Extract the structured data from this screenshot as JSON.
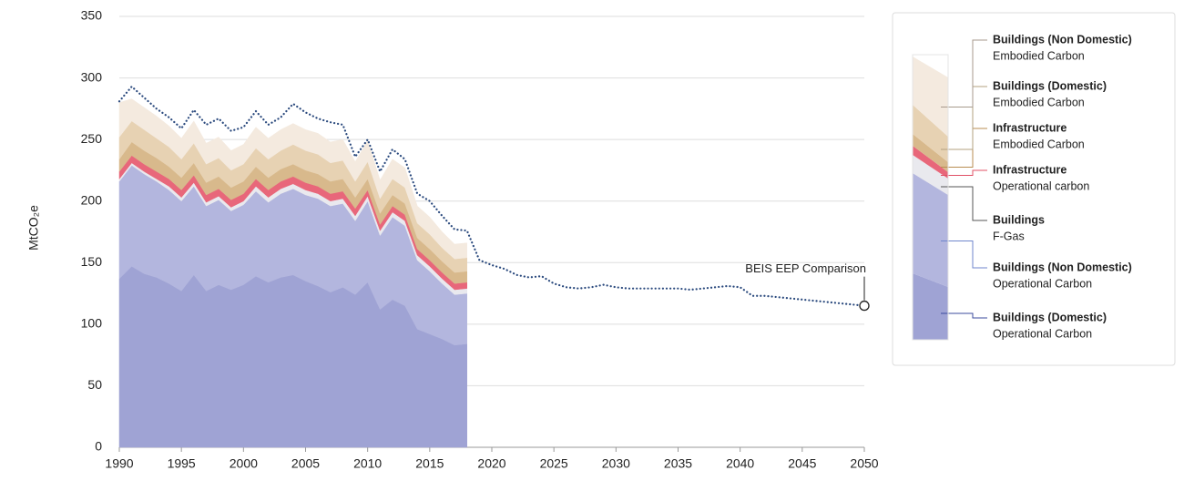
{
  "chart_data": {
    "type": "area",
    "y_label": "MtCO₂e",
    "x": [
      1990,
      1991,
      1992,
      1993,
      1994,
      1995,
      1996,
      1997,
      1998,
      1999,
      2000,
      2001,
      2002,
      2003,
      2004,
      2005,
      2006,
      2007,
      2008,
      2009,
      2010,
      2011,
      2012,
      2013,
      2014,
      2015,
      2016,
      2017,
      2018
    ],
    "xlim": [
      1990,
      2050
    ],
    "xticks": [
      1990,
      1995,
      2000,
      2005,
      2010,
      2015,
      2020,
      2025,
      2030,
      2035,
      2040,
      2045,
      2050
    ],
    "ylim": [
      0,
      350
    ],
    "yticks": [
      0,
      50,
      100,
      150,
      200,
      250,
      300,
      350
    ],
    "grid": true,
    "legend": "right",
    "series": [
      {
        "name": "Buildings (Domestic)",
        "detail": "Operational Carbon",
        "color": "#9fa3d4",
        "label_color": "#3b4b9e",
        "values": [
          137,
          147,
          141,
          138,
          133,
          127,
          140,
          127,
          132,
          128,
          132,
          139,
          134,
          138,
          140,
          135,
          131,
          126,
          130,
          124,
          134,
          112,
          120,
          115,
          96,
          92,
          88,
          83,
          84
        ]
      },
      {
        "name": "Buildings (Non Domestic)",
        "detail": "Operational Carbon",
        "color": "#b3b6de",
        "label_color": "#6f86cc",
        "values": [
          79,
          82,
          81,
          78,
          76,
          73,
          72,
          69,
          69,
          64,
          65,
          69,
          65,
          68,
          70,
          70,
          71,
          70,
          68,
          60,
          66,
          60,
          67,
          65,
          56,
          51,
          45,
          41,
          41
        ]
      },
      {
        "name": "Buildings",
        "detail": "F-Gas",
        "color": "#e9e9ee",
        "label_color": "#555555",
        "values": [
          2,
          2,
          2,
          2,
          3,
          3,
          3,
          3,
          3,
          3,
          3,
          4,
          4,
          4,
          4,
          4,
          4,
          4,
          4,
          4,
          4,
          4,
          4,
          4,
          4,
          4,
          4,
          4,
          4
        ]
      },
      {
        "name": "Infrastructure",
        "detail": "Operational carbon",
        "color": "#e8677a",
        "label_color": "#e05066",
        "values": [
          6,
          6,
          6,
          6,
          6,
          6,
          6,
          6,
          6,
          6,
          6,
          6,
          6,
          6,
          6,
          6,
          6,
          6,
          6,
          6,
          5,
          5,
          5,
          5,
          5,
          5,
          5,
          5,
          5
        ]
      },
      {
        "name": "Infrastructure",
        "detail": "Embodied Carbon",
        "color": "#d8b98c",
        "label_color": "#b88d52",
        "values": [
          10,
          11,
          11,
          11,
          10,
          10,
          10,
          10,
          10,
          10,
          10,
          10,
          10,
          10,
          10,
          10,
          10,
          10,
          10,
          9,
          9,
          9,
          9,
          9,
          9,
          9,
          9,
          9,
          9
        ]
      },
      {
        "name": "Buildings (Domestic)",
        "detail": "Embodied Carbon",
        "color": "#e7d2b3",
        "label_color": "#b3a07f",
        "values": [
          18,
          17,
          17,
          16,
          16,
          15,
          16,
          15,
          15,
          14,
          14,
          15,
          15,
          15,
          16,
          16,
          16,
          15,
          15,
          13,
          14,
          12,
          13,
          13,
          12,
          12,
          11,
          11,
          11
        ]
      },
      {
        "name": "Buildings (Non Domestic)",
        "detail": "Embodied Carbon",
        "color": "#f4eadf",
        "label_color": "#a79a8c",
        "values": [
          28,
          18,
          18,
          18,
          17,
          17,
          18,
          17,
          17,
          16,
          16,
          17,
          17,
          17,
          17,
          17,
          17,
          17,
          17,
          16,
          17,
          15,
          16,
          16,
          14,
          14,
          13,
          12,
          12
        ]
      },
      {
        "name": "BEIS EEP Comparison",
        "type": "line",
        "color": "#2b4a7e",
        "x": [
          1990,
          1991,
          1992,
          1993,
          1994,
          1995,
          1996,
          1997,
          1998,
          1999,
          2000,
          2001,
          2002,
          2003,
          2004,
          2005,
          2006,
          2007,
          2008,
          2009,
          2010,
          2011,
          2012,
          2013,
          2014,
          2015,
          2016,
          2017,
          2018,
          2019,
          2020,
          2021,
          2022,
          2023,
          2024,
          2025,
          2026,
          2027,
          2028,
          2029,
          2030,
          2031,
          2032,
          2033,
          2034,
          2035,
          2036,
          2037,
          2038,
          2039,
          2040,
          2041,
          2042,
          2043,
          2044,
          2045,
          2046,
          2047,
          2048,
          2049,
          2050
        ],
        "values": [
          281,
          293,
          284,
          275,
          268,
          259,
          274,
          262,
          267,
          257,
          260,
          273,
          262,
          268,
          279,
          272,
          267,
          264,
          262,
          236,
          250,
          224,
          242,
          234,
          206,
          200,
          188,
          177,
          176,
          152,
          148,
          145,
          140,
          138,
          139,
          133,
          130,
          129,
          130,
          132,
          130,
          129,
          129,
          129,
          129,
          129,
          128,
          129,
          130,
          131,
          130,
          123,
          123,
          122,
          121,
          120,
          119,
          118,
          117,
          116,
          115
        ]
      }
    ]
  }
}
